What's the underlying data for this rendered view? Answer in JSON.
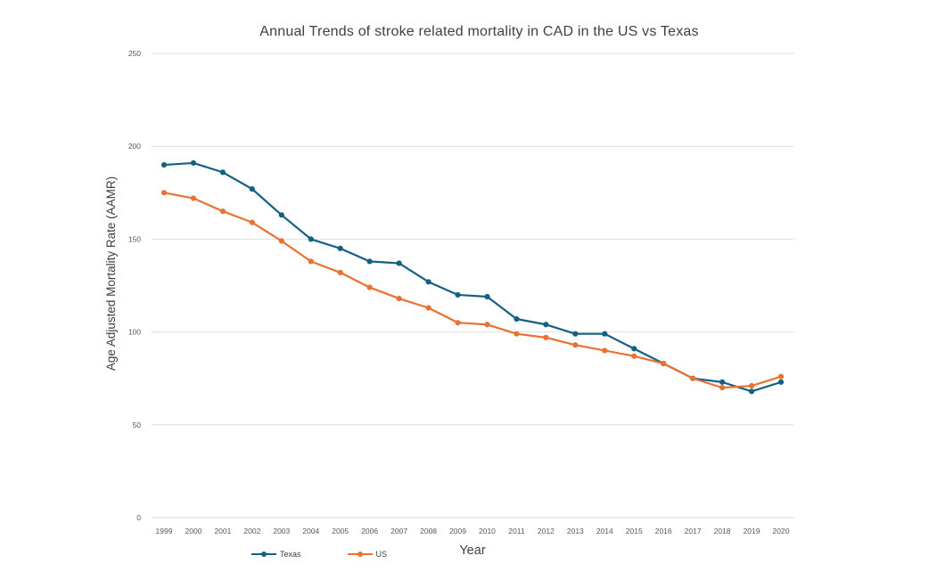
{
  "chart_data": {
    "type": "line",
    "title": "Annual Trends of stroke related mortality in CAD in the US vs Texas",
    "xlabel": "Year",
    "ylabel": "Age Adjusted Mortality Rate (AAMR)",
    "ylim": [
      0,
      250
    ],
    "yticks": [
      0,
      50,
      100,
      150,
      200,
      250
    ],
    "grid": true,
    "legend_position": "bottom",
    "gridline_color": "#dedede",
    "tick_color": "#595959",
    "categories": [
      "1999",
      "2000",
      "2001",
      "2002",
      "2003",
      "2004",
      "2005",
      "2006",
      "2007",
      "2008",
      "2009",
      "2010",
      "2011",
      "2012",
      "2013",
      "2014",
      "2015",
      "2016",
      "2017",
      "2018",
      "2019",
      "2020"
    ],
    "series": [
      {
        "name": "Texas",
        "color": "#156082",
        "values": [
          190,
          191,
          186,
          177,
          163,
          150,
          145,
          138,
          137,
          127,
          120,
          119,
          107,
          104,
          99,
          99,
          91,
          83,
          75,
          73,
          68,
          73
        ]
      },
      {
        "name": "US",
        "color": "#E97132",
        "values": [
          175,
          172,
          165,
          159,
          149,
          138,
          132,
          124,
          118,
          113,
          105,
          104,
          99,
          97,
          93,
          90,
          87,
          83,
          75,
          70,
          71,
          76
        ]
      }
    ]
  }
}
